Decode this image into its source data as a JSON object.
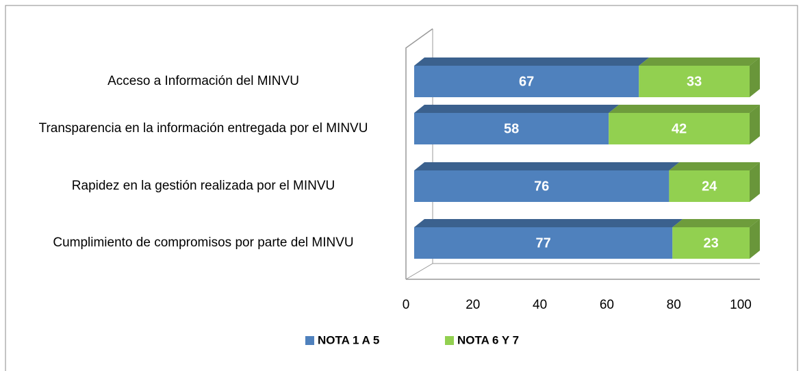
{
  "chart_data": {
    "type": "stacked_bar_3d_horizontal",
    "categories": [
      "Acceso a Información del MINVU",
      "Transparencia en la información entregada por el MINVU",
      "Rapidez en la gestión realizada por el MINVU",
      "Cumplimiento de compromisos por parte del MINVU"
    ],
    "series": [
      {
        "name": "NOTA 1 A 5",
        "color": "#4f81bd",
        "values": [
          67,
          58,
          76,
          77
        ]
      },
      {
        "name": "NOTA 6 Y 7",
        "color": "#92d050",
        "values": [
          33,
          42,
          24,
          23
        ]
      }
    ],
    "xlim": [
      0,
      100
    ],
    "xticks": [
      0,
      20,
      40,
      60,
      80,
      100
    ],
    "legend": "bottom"
  }
}
